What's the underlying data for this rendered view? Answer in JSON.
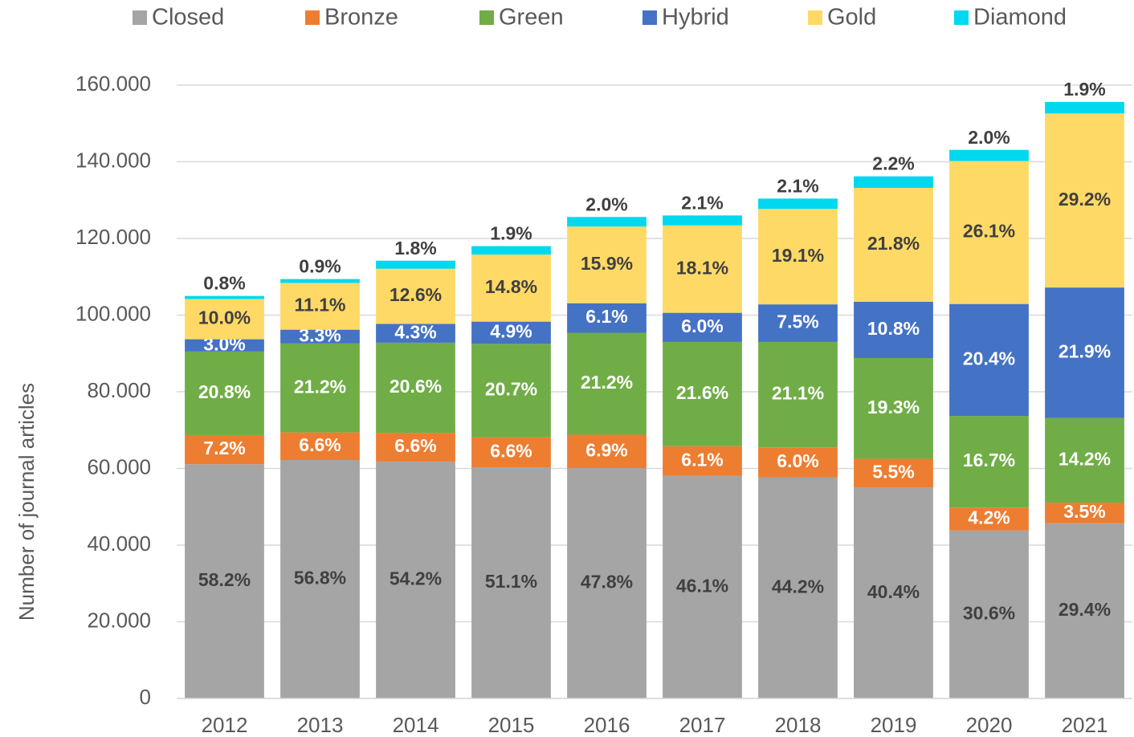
{
  "chart_data": {
    "type": "stacked_bar",
    "y_axis_label": "Number of journal articles",
    "categories": [
      "2012",
      "2013",
      "2014",
      "2015",
      "2016",
      "2017",
      "2018",
      "2019",
      "2020",
      "2021"
    ],
    "ylim": [
      0,
      160000
    ],
    "yticks": [
      0,
      {
        "value": 20000,
        "label": "20.000"
      },
      {
        "value": 40000,
        "label": "40.000"
      },
      {
        "value": 60000,
        "label": "60.000"
      },
      {
        "value": 80000,
        "label": "80.000"
      },
      {
        "value": 100000,
        "label": "100.000"
      },
      {
        "value": 120000,
        "label": "120.000"
      },
      {
        "value": 140000,
        "label": "140.000"
      },
      {
        "value": 160000,
        "label": "160.000"
      }
    ],
    "legend": "top",
    "series": [
      {
        "name": "Closed",
        "color": "#a5a5a5",
        "values": [
          61100,
          62200,
          61800,
          60300,
          60100,
          58100,
          57700,
          55000,
          43800,
          45700
        ],
        "value_labels": [
          "58.2%",
          "56.8%",
          "54.2%",
          "51.1%",
          "47.8%",
          "46.1%",
          "44.2%",
          "40.4%",
          "30.6%",
          "29.4%"
        ]
      },
      {
        "name": "Bronze",
        "color": "#ed7d31",
        "values": [
          7600,
          7200,
          7500,
          7800,
          8700,
          7700,
          7800,
          7500,
          6000,
          5400
        ],
        "value_labels": [
          "7.2%",
          "6.6%",
          "6.6%",
          "6.6%",
          "6.9%",
          "6.1%",
          "6.0%",
          "5.5%",
          "4.2%",
          "3.5%"
        ]
      },
      {
        "name": "Green",
        "color": "#70ad47",
        "values": [
          21800,
          23200,
          23500,
          24400,
          26600,
          27200,
          27500,
          26300,
          23900,
          22100
        ],
        "value_labels": [
          "20.8%",
          "21.2%",
          "20.6%",
          "20.7%",
          "21.2%",
          "21.6%",
          "21.1%",
          "19.3%",
          "16.7%",
          "14.2%"
        ]
      },
      {
        "name": "Hybrid",
        "color": "#4472c4",
        "values": [
          3200,
          3600,
          4900,
          5800,
          7700,
          7600,
          9800,
          14700,
          29200,
          34000
        ],
        "value_labels": [
          "3.0%",
          "3.3%",
          "4.3%",
          "4.9%",
          "6.1%",
          "6.0%",
          "7.5%",
          "10.8%",
          "20.4%",
          "21.9%"
        ]
      },
      {
        "name": "Gold",
        "color": "#ffd966",
        "values": [
          10500,
          12200,
          14400,
          17500,
          20000,
          22800,
          24900,
          29700,
          37300,
          45400
        ],
        "value_labels": [
          "10.0%",
          "11.1%",
          "12.6%",
          "14.8%",
          "15.9%",
          "18.1%",
          "19.1%",
          "21.8%",
          "26.1%",
          "29.2%"
        ]
      },
      {
        "name": "Diamond",
        "color": "#00d8f0",
        "values": [
          800,
          1000,
          2100,
          2200,
          2500,
          2600,
          2700,
          3000,
          2900,
          3000
        ],
        "value_labels": [
          "0.8%",
          "0.9%",
          "1.8%",
          "1.9%",
          "2.0%",
          "2.1%",
          "2.1%",
          "2.2%",
          "2.0%",
          "1.9%"
        ]
      }
    ]
  }
}
